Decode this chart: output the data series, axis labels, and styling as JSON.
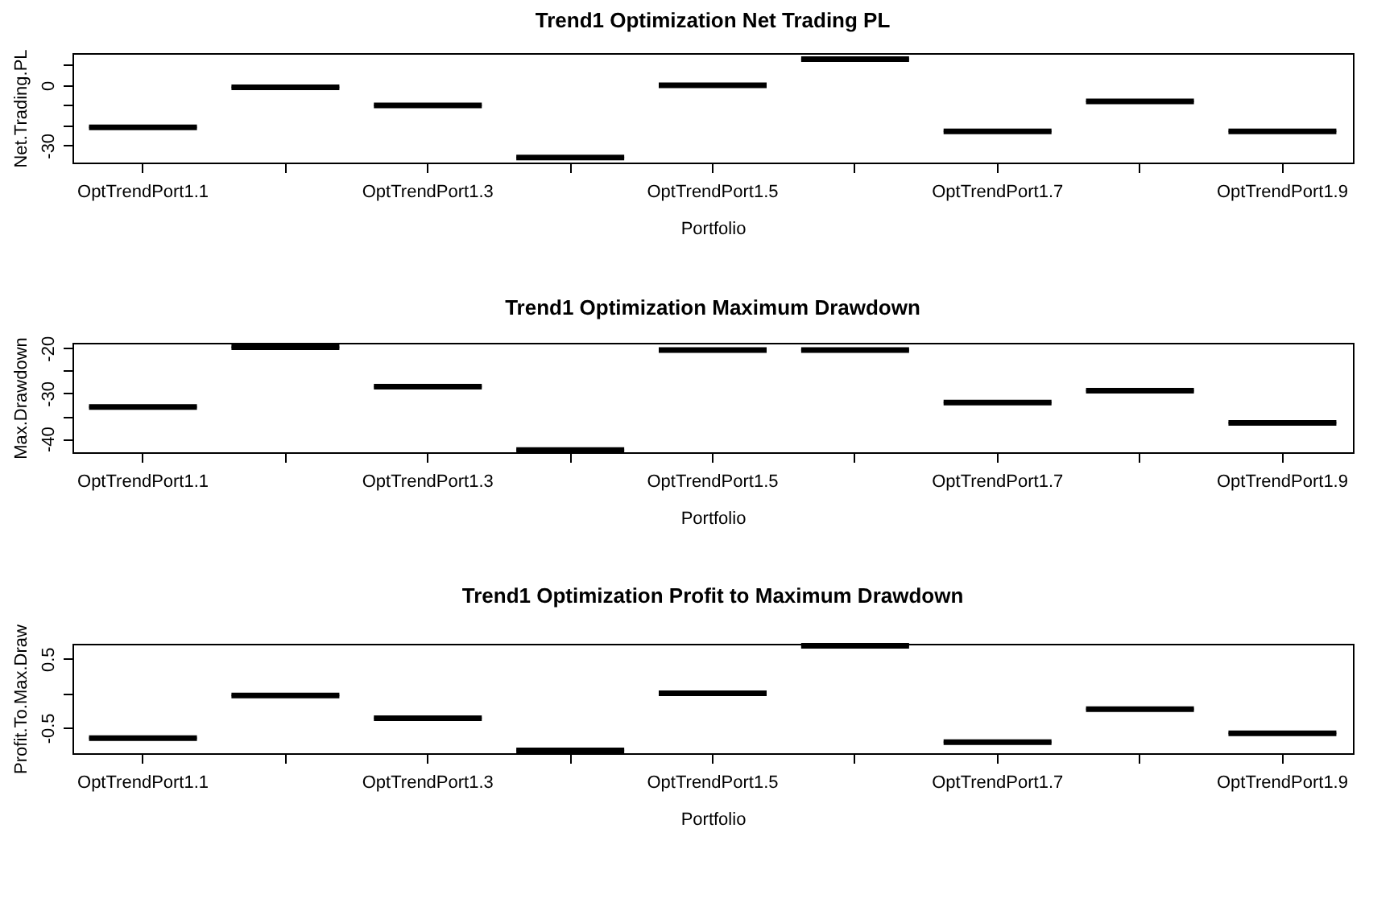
{
  "chart_data": [
    {
      "type": "box",
      "title": "Trend1 Optimization Net Trading PL",
      "xlabel": "Portfolio",
      "ylabel": "Net.Trading.PL",
      "categories": [
        "OptTrendPort1.1",
        null,
        "OptTrendPort1.3",
        null,
        "OptTrendPort1.5",
        null,
        "OptTrendPort1.7",
        null,
        "OptTrendPort1.9"
      ],
      "boxes": [
        {
          "low": -21,
          "q1": -21,
          "median": -21,
          "q3": -21,
          "high": -21
        },
        {
          "low": -1,
          "q1": -1,
          "median": -1,
          "q3": -1,
          "high": -1
        },
        {
          "low": -10,
          "q1": -10,
          "median": -10,
          "q3": -10,
          "high": -10
        },
        {
          "low": -36,
          "q1": -36,
          "median": -36,
          "q3": -36,
          "high": -36
        },
        {
          "low": 0,
          "q1": 0,
          "median": 0,
          "q3": 0,
          "high": 0
        },
        {
          "low": 13,
          "q1": 13,
          "median": 13,
          "q3": 13,
          "high": 13
        },
        {
          "low": -23,
          "q1": -23,
          "median": -23,
          "q3": -23,
          "high": -23
        },
        {
          "low": -8,
          "q1": -8,
          "median": -8,
          "q3": -8,
          "high": -8
        },
        {
          "low": -23,
          "q1": -23,
          "median": -23,
          "q3": -23,
          "high": -23
        }
      ],
      "color": "#000000",
      "ylim": [
        -38.5,
        16
      ],
      "yticks": [
        {
          "value": 10,
          "label": null
        },
        0,
        {
          "value": -10,
          "label": null
        },
        {
          "value": -20,
          "label": null
        },
        -30
      ],
      "grid": false
    },
    {
      "type": "box",
      "title": "Trend1 Optimization Maximum Drawdown",
      "xlabel": "Portfolio",
      "ylabel": "Max.Drawdown",
      "categories": [
        "OptTrendPort1.1",
        null,
        "OptTrendPort1.3",
        null,
        "OptTrendPort1.5",
        null,
        "OptTrendPort1.7",
        null,
        "OptTrendPort1.9"
      ],
      "boxes": [
        {
          "low": -33,
          "q1": -33,
          "median": -33,
          "q3": -33,
          "high": -33
        },
        {
          "low": -19.8,
          "q1": -19.8,
          "median": -19.8,
          "q3": -19.8,
          "high": -19.8
        },
        {
          "low": -28.5,
          "q1": -28.5,
          "median": -28.5,
          "q3": -28.5,
          "high": -28.5
        },
        {
          "low": -42.5,
          "q1": -42.5,
          "median": -42.5,
          "q3": -42.5,
          "high": -42.5
        },
        {
          "low": -20.4,
          "q1": -20.4,
          "median": -20.4,
          "q3": -20.4,
          "high": -20.4
        },
        {
          "low": -20.4,
          "q1": -20.4,
          "median": -20.4,
          "q3": -20.4,
          "high": -20.4
        },
        {
          "low": -32,
          "q1": -32,
          "median": -32,
          "q3": -32,
          "high": -32
        },
        {
          "low": -29.4,
          "q1": -29.4,
          "median": -29.4,
          "q3": -29.4,
          "high": -29.4
        },
        {
          "low": -36.5,
          "q1": -36.5,
          "median": -36.5,
          "q3": -36.5,
          "high": -36.5
        }
      ],
      "color": "#000000",
      "ylim": [
        -43,
        -18.8
      ],
      "yticks": [
        -20,
        {
          "value": -25,
          "label": null
        },
        -30,
        {
          "value": -35,
          "label": null
        },
        -40
      ],
      "grid": false
    },
    {
      "type": "box",
      "title": "Trend1 Optimization Profit to Maximum Drawdown",
      "xlabel": "Portfolio",
      "ylabel": "Profit.To.Max.Draw",
      "categories": [
        "OptTrendPort1.1",
        null,
        "OptTrendPort1.3",
        null,
        "OptTrendPort1.5",
        null,
        "OptTrendPort1.7",
        null,
        "OptTrendPort1.9"
      ],
      "boxes": [
        {
          "low": -0.65,
          "q1": -0.65,
          "median": -0.65,
          "q3": -0.65,
          "high": -0.65
        },
        {
          "low": -0.03,
          "q1": -0.03,
          "median": -0.03,
          "q3": -0.03,
          "high": -0.03
        },
        {
          "low": -0.36,
          "q1": -0.36,
          "median": -0.36,
          "q3": -0.36,
          "high": -0.36
        },
        {
          "low": -0.83,
          "q1": -0.83,
          "median": -0.83,
          "q3": -0.83,
          "high": -0.83
        },
        {
          "low": 0,
          "q1": 0,
          "median": 0,
          "q3": 0,
          "high": 0
        },
        {
          "low": 0.69,
          "q1": 0.69,
          "median": 0.69,
          "q3": 0.69,
          "high": 0.69
        },
        {
          "low": -0.71,
          "q1": -0.71,
          "median": -0.71,
          "q3": -0.71,
          "high": -0.71
        },
        {
          "low": -0.23,
          "q1": -0.23,
          "median": -0.23,
          "q3": -0.23,
          "high": -0.23
        },
        {
          "low": -0.58,
          "q1": -0.58,
          "median": -0.58,
          "q3": -0.58,
          "high": -0.58
        }
      ],
      "color": "#000000",
      "ylim": [
        -0.87,
        0.72
      ],
      "yticks": [
        0.5,
        {
          "value": 0,
          "label": null
        },
        -0.5
      ],
      "grid": false
    }
  ]
}
